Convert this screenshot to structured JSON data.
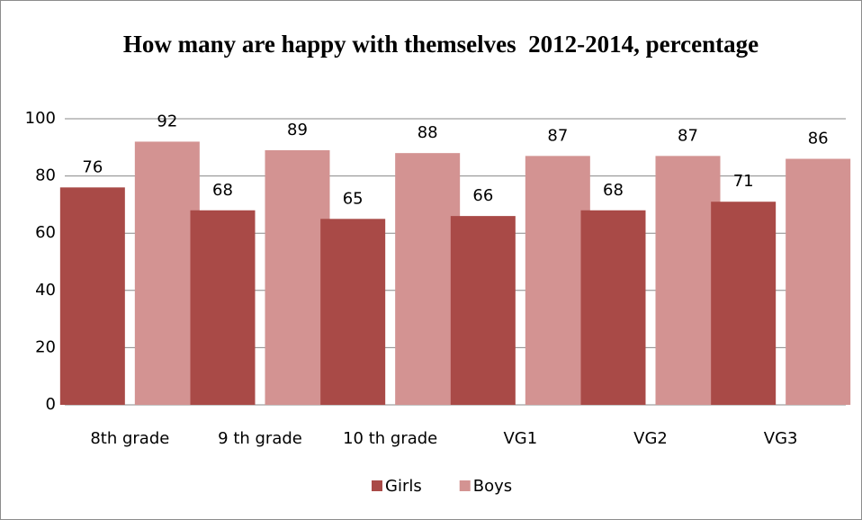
{
  "chart_data": {
    "type": "bar",
    "title": "How many are happy with themselves  2012-2014, percentage",
    "categories": [
      "8th grade",
      "9 th grade",
      "10 th grade",
      "VG1",
      "VG2",
      "VG3"
    ],
    "series": [
      {
        "name": "Girls",
        "color": "#a94a47",
        "values": [
          76,
          68,
          65,
          66,
          68,
          71
        ]
      },
      {
        "name": "Boys",
        "color": "#d39392",
        "values": [
          92,
          89,
          88,
          87,
          87,
          86
        ]
      }
    ],
    "ylim": [
      0,
      100
    ],
    "yticks": [
      0,
      20,
      40,
      60,
      80,
      100
    ],
    "grid": true,
    "legend": "bottom"
  }
}
